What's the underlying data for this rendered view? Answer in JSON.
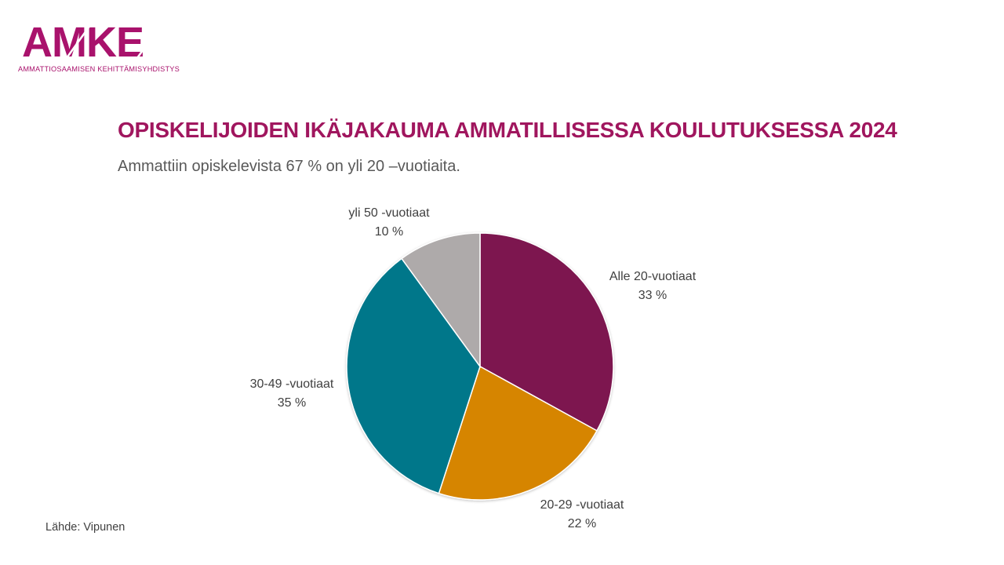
{
  "logo": {
    "word": "AMKE",
    "tagline": "AMMATTIOSAAMISEN KEHITTÄMISYHDISTYS"
  },
  "title": "OPISKELIJOIDEN IKÄJAKAUMA AMMATILLISESSA KOULUTUKSESSA 2024",
  "subtitle": "Ammattiin opiskelevista 67 % on yli 20 –vuotiaita.",
  "source": "Lähde: Vipunen",
  "colors": {
    "brand": "#a9126c",
    "title": "#a0165e"
  },
  "chart_data": {
    "type": "pie",
    "title": "OPISKELIJOIDEN IKÄJAKAUMA AMMATILLISESSA KOULUTUKSESSA 2024",
    "start": "12 o'clock, clockwise",
    "slices": [
      {
        "label": "Alle 20-vuotiaat",
        "value": 33,
        "value_label": "33 %",
        "color": "#7d1850"
      },
      {
        "label": "20-29 -vuotiaat",
        "value": 22,
        "value_label": "22 %",
        "color": "#d68500"
      },
      {
        "label": "30-49 -vuotiaat",
        "value": 35,
        "value_label": "35 %",
        "color": "#00778a"
      },
      {
        "label": "yli 50 -vuotiaat",
        "value": 10,
        "value_label": "10 %",
        "color": "#aeaaaa"
      }
    ]
  }
}
